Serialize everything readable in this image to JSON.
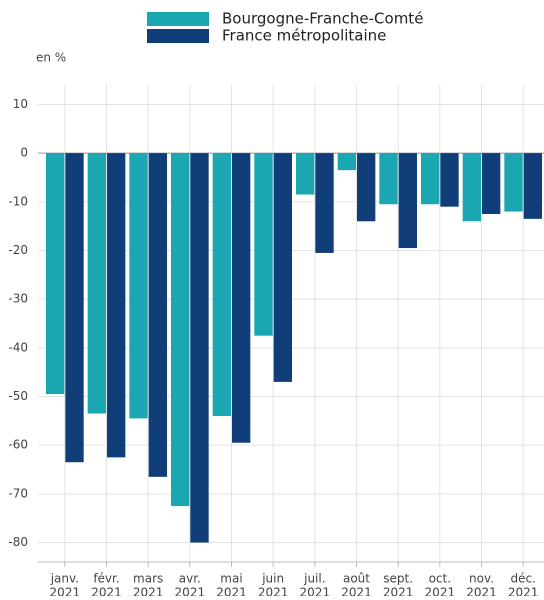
{
  "chart_data": {
    "type": "bar",
    "y_unit_label": "en %",
    "categories": [
      [
        "janv.",
        "2021"
      ],
      [
        "févr.",
        "2021"
      ],
      [
        "mars",
        "2021"
      ],
      [
        "avr.",
        "2021"
      ],
      [
        "mai",
        "2021"
      ],
      [
        "juin",
        "2021"
      ],
      [
        "juil.",
        "2021"
      ],
      [
        "août",
        "2021"
      ],
      [
        "sept.",
        "2021"
      ],
      [
        "oct.",
        "2021"
      ],
      [
        "nov.",
        "2021"
      ],
      [
        "déc.",
        "2021"
      ]
    ],
    "series": [
      {
        "name": "Bourgogne-Franche-Comté",
        "color": "#1aa7b1",
        "values": [
          -49.5,
          -53.5,
          -54.5,
          -72.5,
          -54,
          -37.5,
          -8.5,
          -3.5,
          -10.5,
          -10.5,
          -14,
          -12
        ]
      },
      {
        "name": "France métropolitaine",
        "color": "#103e78",
        "values": [
          -63.5,
          -62.5,
          -66.5,
          -80,
          -59.5,
          -47,
          -20.5,
          -14,
          -19.5,
          -11,
          -12.5,
          -13.5
        ]
      }
    ],
    "ylim": [
      -84,
      14
    ],
    "yticks": [
      10,
      0,
      -10,
      -20,
      -30,
      -40,
      -50,
      -60,
      -70,
      -80
    ],
    "grid": true
  }
}
